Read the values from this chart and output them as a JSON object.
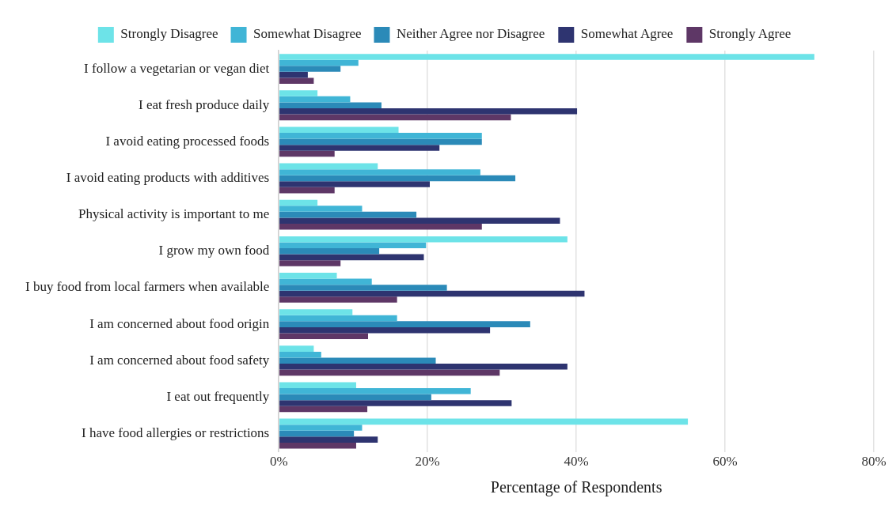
{
  "chart_data": {
    "type": "bar",
    "orientation": "horizontal",
    "xlabel": "Percentage of Respondents",
    "categories": [
      "I follow a vegetarian or vegan diet",
      "I eat fresh produce daily",
      "I avoid eating processed foods",
      "I avoid eating products with additives",
      "Physical activity is important to me",
      "I grow my own food",
      "I buy food from local farmers when available",
      "I am concerned about food origin",
      "I am concerned about food safety",
      "I eat out frequently",
      "I have food allergies or restrictions"
    ],
    "series": [
      {
        "name": "Strongly Disagree",
        "color": "#6de3e8",
        "values": [
          72.0,
          5.2,
          16.1,
          13.3,
          5.2,
          38.8,
          7.8,
          9.9,
          4.7,
          10.4,
          55.0
        ]
      },
      {
        "name": "Somewhat Disagree",
        "color": "#40b5d6",
        "values": [
          10.7,
          9.6,
          27.3,
          27.1,
          11.2,
          19.8,
          12.5,
          15.9,
          5.7,
          25.8,
          11.2
        ]
      },
      {
        "name": "Neither Agree nor Disagree",
        "color": "#2b8ab8",
        "values": [
          8.3,
          13.8,
          27.3,
          31.8,
          18.5,
          13.5,
          22.6,
          33.8,
          21.1,
          20.5,
          10.1
        ]
      },
      {
        "name": "Somewhat Agree",
        "color": "#2e3470",
        "values": [
          3.9,
          40.1,
          21.6,
          20.3,
          37.8,
          19.5,
          41.1,
          28.4,
          38.8,
          31.3,
          13.3
        ]
      },
      {
        "name": "Strongly Agree",
        "color": "#5e3766",
        "values": [
          4.7,
          31.2,
          7.5,
          7.5,
          27.3,
          8.3,
          15.9,
          12.0,
          29.7,
          11.9,
          10.4
        ]
      }
    ],
    "xlim": [
      0,
      80
    ],
    "xticks": [
      {
        "value": 0,
        "label": "0%"
      },
      {
        "value": 20,
        "label": "20%"
      },
      {
        "value": 40,
        "label": "40%"
      },
      {
        "value": 60,
        "label": "60%"
      },
      {
        "value": 80,
        "label": "80%"
      }
    ],
    "grid": "x",
    "legend": "top"
  }
}
